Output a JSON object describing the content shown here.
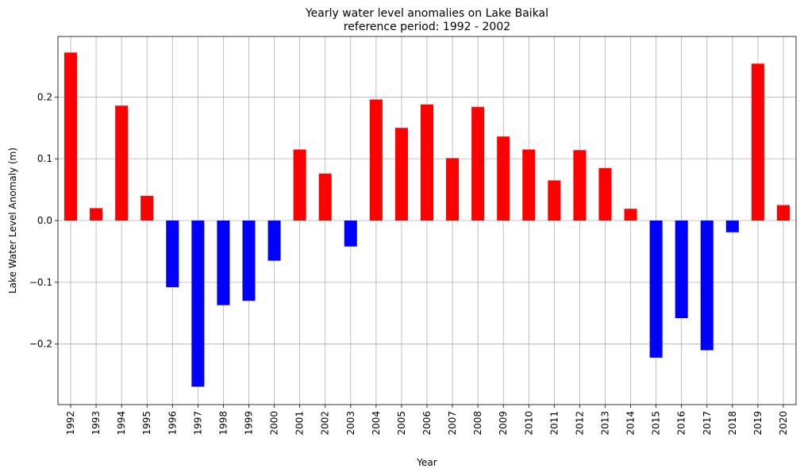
{
  "chart_data": {
    "type": "bar",
    "title": "Yearly water level anomalies on Lake Baikal",
    "subtitle": "reference period:  1992 - 2002",
    "xlabel": "Year",
    "ylabel": "Lake Water Level Anomaly (m)",
    "categories": [
      "1992",
      "1993",
      "1994",
      "1995",
      "1996",
      "1997",
      "1998",
      "1999",
      "2000",
      "2001",
      "2002",
      "2003",
      "2004",
      "2005",
      "2006",
      "2007",
      "2008",
      "2009",
      "2010",
      "2011",
      "2012",
      "2013",
      "2014",
      "2015",
      "2016",
      "2017",
      "2018",
      "2019",
      "2020"
    ],
    "values": [
      0.272,
      0.02,
      0.186,
      0.04,
      -0.108,
      -0.269,
      -0.137,
      -0.13,
      -0.065,
      0.115,
      0.076,
      -0.042,
      0.196,
      0.15,
      0.188,
      0.101,
      0.184,
      0.136,
      0.115,
      0.065,
      0.114,
      0.085,
      0.019,
      -0.222,
      -0.158,
      -0.21,
      -0.019,
      0.254,
      0.025
    ],
    "ylim": [
      -0.298,
      0.298
    ],
    "yticks": [
      -0.2,
      -0.1,
      0.0,
      0.1,
      0.2
    ],
    "ytick_labels": [
      "−0.2",
      "−0.1",
      "0.0",
      "0.1",
      "0.2"
    ],
    "grid": true,
    "colors": {
      "positive": "#ff0000",
      "negative": "#0000ff"
    }
  }
}
